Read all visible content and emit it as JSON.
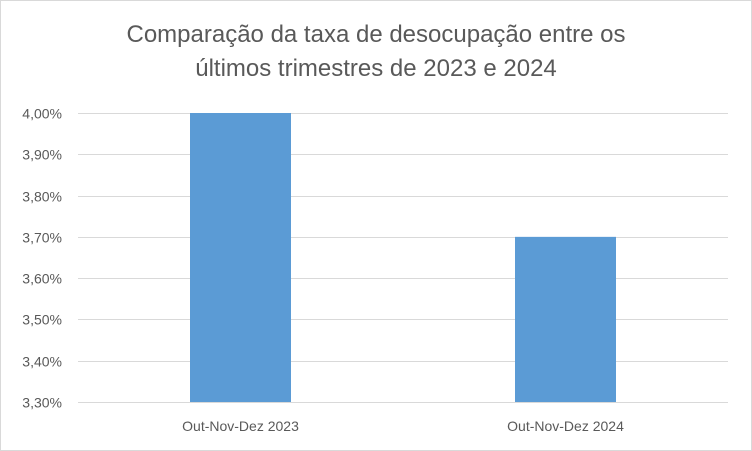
{
  "chart_data": {
    "type": "bar",
    "title_lines": [
      "Comparação da taxa de desocupação entre os",
      "últimos trimestres de 2023 e 2024"
    ],
    "categories": [
      "Out-Nov-Dez 2023",
      "Out-Nov-Dez 2024"
    ],
    "values": [
      4.0,
      3.7
    ],
    "ylim": [
      3.3,
      4.0
    ],
    "y_ticks": [
      3.3,
      3.4,
      3.5,
      3.6,
      3.7,
      3.8,
      3.9,
      4.0
    ],
    "y_tick_labels": [
      "3,30%",
      "3,40%",
      "3,50%",
      "3,60%",
      "3,70%",
      "3,80%",
      "3,90%",
      "4,00%"
    ],
    "bar_color": "#5b9bd5",
    "grid": true,
    "legend": "none"
  }
}
